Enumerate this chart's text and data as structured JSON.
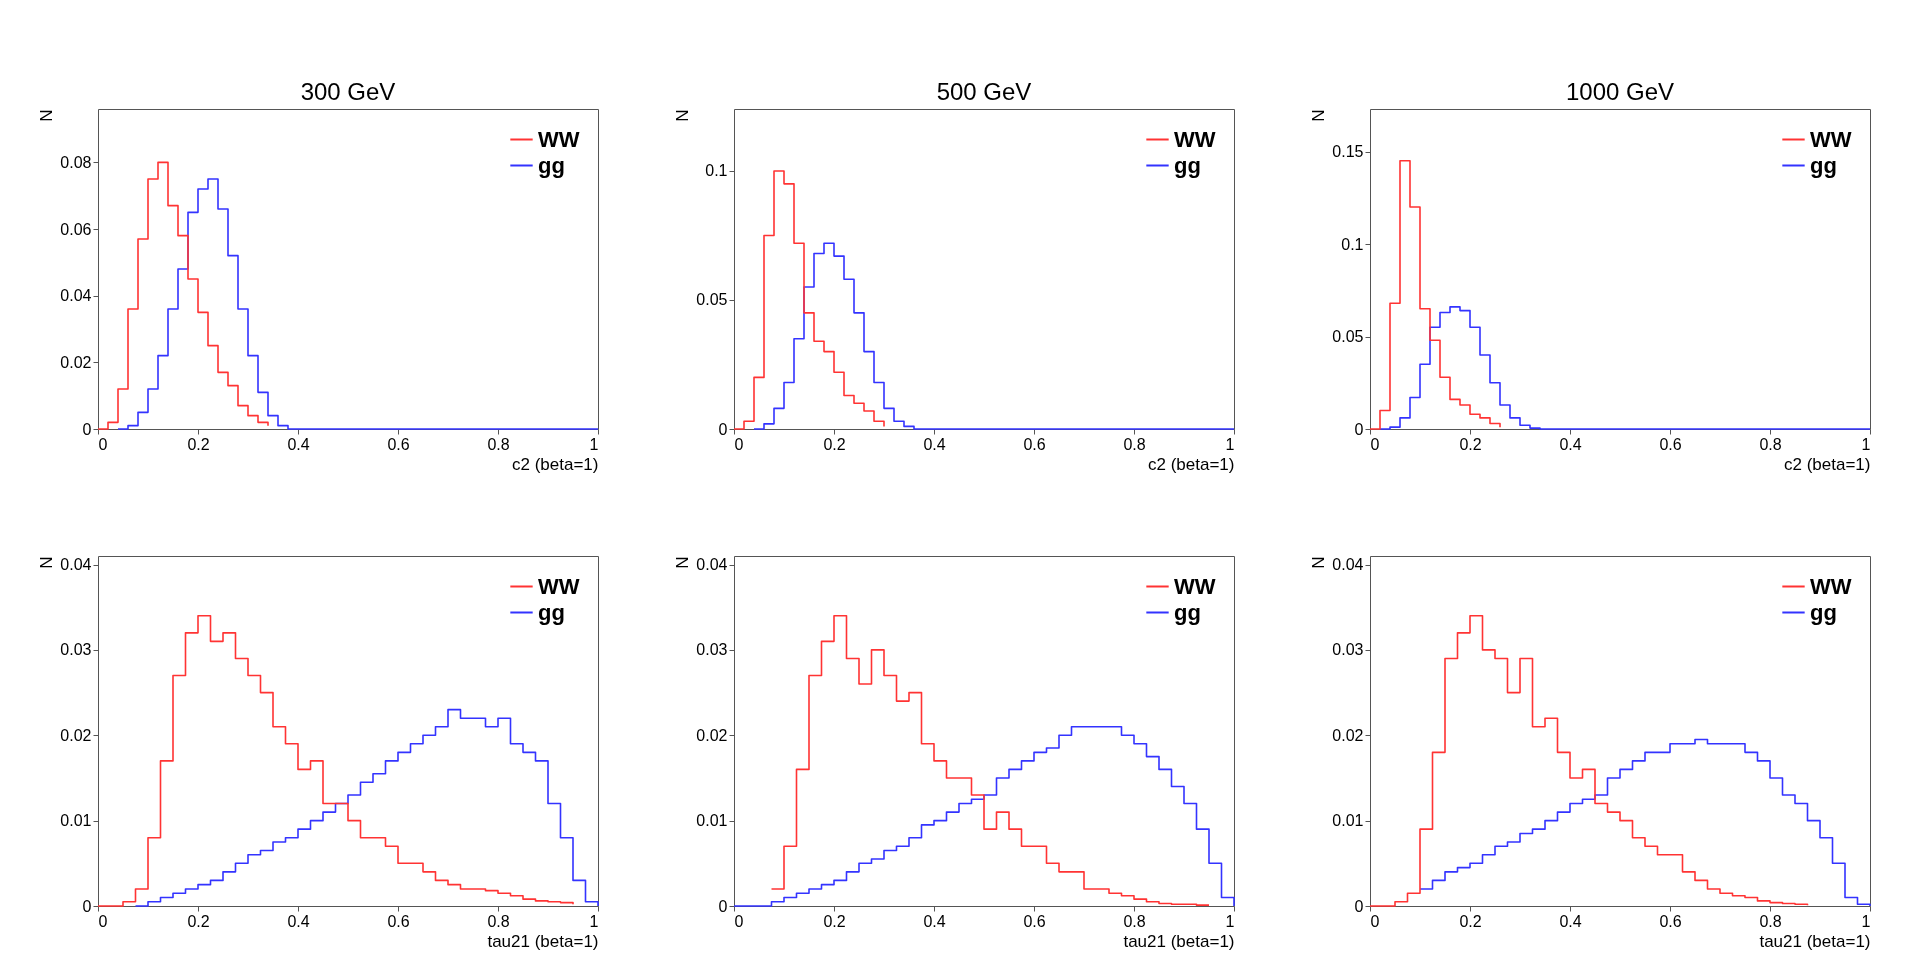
{
  "chart_data": [
    {
      "type": "step",
      "title": "300 GeV",
      "xlabel": "c2 (beta=1)",
      "ylabel": "N",
      "xlim": [
        0,
        1
      ],
      "xticks": [
        0,
        0.2,
        0.4,
        0.6,
        0.8,
        1
      ],
      "ylim": [
        0,
        0.096
      ],
      "yticks": [
        0,
        0.02,
        0.04,
        0.06,
        0.08
      ],
      "legend": "top right",
      "grid": false,
      "series": [
        {
          "name": "WW",
          "color": "#ff3333",
          "x": [
            0,
            0.02,
            0.04,
            0.06,
            0.08,
            0.1,
            0.12,
            0.14,
            0.16,
            0.18,
            0.2,
            0.22,
            0.24,
            0.26,
            0.28,
            0.3,
            0.32,
            0.34
          ],
          "values": [
            0,
            0.002,
            0.012,
            0.036,
            0.057,
            0.075,
            0.08,
            0.067,
            0.058,
            0.045,
            0.035,
            0.025,
            0.017,
            0.013,
            0.007,
            0.004,
            0.002,
            0.001
          ]
        },
        {
          "name": "gg",
          "color": "#3333ff",
          "x": [
            0.04,
            0.06,
            0.08,
            0.1,
            0.12,
            0.14,
            0.16,
            0.18,
            0.2,
            0.22,
            0.24,
            0.26,
            0.28,
            0.3,
            0.32,
            0.34,
            0.36,
            0.38,
            0.4,
            1
          ],
          "values": [
            0,
            0.001,
            0.005,
            0.012,
            0.022,
            0.036,
            0.048,
            0.065,
            0.072,
            0.075,
            0.066,
            0.052,
            0.036,
            0.022,
            0.011,
            0.004,
            0.001,
            0,
            0,
            0
          ]
        }
      ]
    },
    {
      "type": "step",
      "title": "500 GeV",
      "xlabel": "c2 (beta=1)",
      "ylabel": "N",
      "xlim": [
        0,
        1
      ],
      "xticks": [
        0,
        0.2,
        0.4,
        0.6,
        0.8,
        1
      ],
      "ylim": [
        0,
        0.124
      ],
      "yticks": [
        0,
        0.05,
        0.1
      ],
      "legend": "top right",
      "grid": false,
      "series": [
        {
          "name": "WW",
          "color": "#ff3333",
          "x": [
            0,
            0.02,
            0.04,
            0.06,
            0.08,
            0.1,
            0.12,
            0.14,
            0.16,
            0.18,
            0.2,
            0.22,
            0.24,
            0.26,
            0.28,
            0.3
          ],
          "values": [
            0,
            0.003,
            0.02,
            0.075,
            0.1,
            0.095,
            0.072,
            0.045,
            0.034,
            0.03,
            0.022,
            0.013,
            0.01,
            0.007,
            0.003,
            0.001
          ]
        },
        {
          "name": "gg",
          "color": "#3333ff",
          "x": [
            0.04,
            0.06,
            0.08,
            0.1,
            0.12,
            0.14,
            0.16,
            0.18,
            0.2,
            0.22,
            0.24,
            0.26,
            0.28,
            0.3,
            0.32,
            0.34,
            0.36,
            0.38,
            0.4,
            1
          ],
          "values": [
            0,
            0.002,
            0.008,
            0.018,
            0.035,
            0.055,
            0.068,
            0.072,
            0.067,
            0.058,
            0.045,
            0.03,
            0.018,
            0.008,
            0.003,
            0.001,
            0,
            0,
            0,
            0
          ]
        }
      ]
    },
    {
      "type": "step",
      "title": "1000 GeV",
      "xlabel": "c2 (beta=1)",
      "ylabel": "N",
      "xlim": [
        0,
        1
      ],
      "xticks": [
        0,
        0.2,
        0.4,
        0.6,
        0.8,
        1
      ],
      "ylim": [
        0,
        0.173
      ],
      "yticks": [
        0,
        0.05,
        0.1,
        0.15
      ],
      "legend": "top right",
      "grid": false,
      "series": [
        {
          "name": "WW",
          "color": "#ff3333",
          "x": [
            0,
            0.02,
            0.04,
            0.06,
            0.08,
            0.1,
            0.12,
            0.14,
            0.16,
            0.18,
            0.2,
            0.22,
            0.24,
            0.26
          ],
          "values": [
            0,
            0.01,
            0.068,
            0.145,
            0.12,
            0.065,
            0.048,
            0.028,
            0.016,
            0.013,
            0.008,
            0.006,
            0.003,
            0.001
          ]
        },
        {
          "name": "gg",
          "color": "#3333ff",
          "x": [
            0.02,
            0.04,
            0.06,
            0.08,
            0.1,
            0.12,
            0.14,
            0.16,
            0.18,
            0.2,
            0.22,
            0.24,
            0.26,
            0.28,
            0.3,
            0.32,
            0.34,
            0.36,
            0.38,
            0.4,
            1
          ],
          "values": [
            0,
            0.001,
            0.006,
            0.017,
            0.035,
            0.055,
            0.063,
            0.066,
            0.064,
            0.055,
            0.04,
            0.025,
            0.013,
            0.006,
            0.002,
            0.0005,
            0,
            0,
            0,
            0,
            0
          ]
        }
      ]
    },
    {
      "type": "step",
      "xlabel": "tau21 (beta=1)",
      "ylabel": "N",
      "xlim": [
        0,
        1
      ],
      "xticks": [
        0,
        0.2,
        0.4,
        0.6,
        0.8,
        1
      ],
      "ylim": [
        0,
        0.041
      ],
      "yticks": [
        0,
        0.01,
        0.02,
        0.03,
        0.04
      ],
      "legend": "top right",
      "grid": false,
      "series": [
        {
          "name": "WW",
          "color": "#ff3333",
          "x": [
            0,
            0.025,
            0.05,
            0.075,
            0.1,
            0.125,
            0.15,
            0.175,
            0.2,
            0.225,
            0.25,
            0.275,
            0.3,
            0.325,
            0.35,
            0.375,
            0.4,
            0.425,
            0.45,
            0.475,
            0.5,
            0.525,
            0.55,
            0.575,
            0.6,
            0.625,
            0.65,
            0.675,
            0.7,
            0.725,
            0.75,
            0.775,
            0.8,
            0.825,
            0.85,
            0.875,
            0.9,
            0.925,
            0.95
          ],
          "values": [
            0,
            0,
            0.0005,
            0.002,
            0.008,
            0.017,
            0.027,
            0.032,
            0.034,
            0.031,
            0.032,
            0.029,
            0.027,
            0.025,
            0.021,
            0.019,
            0.016,
            0.017,
            0.012,
            0.012,
            0.01,
            0.008,
            0.008,
            0.007,
            0.005,
            0.005,
            0.004,
            0.003,
            0.0025,
            0.002,
            0.002,
            0.0018,
            0.0015,
            0.0012,
            0.0008,
            0.0006,
            0.0005,
            0.0004,
            0.0002
          ]
        },
        {
          "name": "gg",
          "color": "#3333ff",
          "x": [
            0.075,
            0.1,
            0.125,
            0.15,
            0.175,
            0.2,
            0.225,
            0.25,
            0.275,
            0.3,
            0.325,
            0.35,
            0.375,
            0.4,
            0.425,
            0.45,
            0.475,
            0.5,
            0.525,
            0.55,
            0.575,
            0.6,
            0.625,
            0.65,
            0.675,
            0.7,
            0.725,
            0.75,
            0.775,
            0.8,
            0.825,
            0.85,
            0.875,
            0.9,
            0.925,
            0.95,
            0.975,
            1
          ],
          "values": [
            0,
            0.0005,
            0.001,
            0.0015,
            0.002,
            0.0025,
            0.003,
            0.004,
            0.005,
            0.006,
            0.0065,
            0.0075,
            0.008,
            0.009,
            0.01,
            0.011,
            0.012,
            0.013,
            0.0145,
            0.0155,
            0.017,
            0.018,
            0.019,
            0.02,
            0.021,
            0.023,
            0.022,
            0.022,
            0.021,
            0.022,
            0.019,
            0.018,
            0.017,
            0.012,
            0.008,
            0.003,
            0.0005,
            0
          ]
        }
      ]
    },
    {
      "type": "step",
      "xlabel": "tau21 (beta=1)",
      "ylabel": "N",
      "xlim": [
        0,
        1
      ],
      "xticks": [
        0,
        0.2,
        0.4,
        0.6,
        0.8,
        1
      ],
      "ylim": [
        0,
        0.041
      ],
      "yticks": [
        0,
        0.01,
        0.02,
        0.03,
        0.04
      ],
      "legend": "top right",
      "grid": false,
      "series": [
        {
          "name": "WW",
          "color": "#ff3333",
          "x": [
            0.075,
            0.1,
            0.125,
            0.15,
            0.175,
            0.2,
            0.225,
            0.25,
            0.275,
            0.3,
            0.325,
            0.35,
            0.375,
            0.4,
            0.425,
            0.45,
            0.475,
            0.5,
            0.525,
            0.55,
            0.575,
            0.6,
            0.625,
            0.65,
            0.675,
            0.7,
            0.725,
            0.75,
            0.775,
            0.8,
            0.825,
            0.85,
            0.875,
            0.9,
            0.925,
            0.95
          ],
          "values": [
            0.002,
            0.007,
            0.016,
            0.027,
            0.031,
            0.034,
            0.029,
            0.026,
            0.03,
            0.027,
            0.024,
            0.025,
            0.019,
            0.017,
            0.015,
            0.015,
            0.013,
            0.009,
            0.011,
            0.009,
            0.007,
            0.007,
            0.005,
            0.004,
            0.004,
            0.002,
            0.002,
            0.0015,
            0.0012,
            0.0008,
            0.0005,
            0.0003,
            0.0002,
            0.0002,
            0.0001,
            0.0001
          ]
        },
        {
          "name": "gg",
          "color": "#3333ff",
          "x": [
            0,
            0.025,
            0.05,
            0.075,
            0.1,
            0.125,
            0.15,
            0.175,
            0.2,
            0.225,
            0.25,
            0.275,
            0.3,
            0.325,
            0.35,
            0.375,
            0.4,
            0.425,
            0.45,
            0.475,
            0.5,
            0.525,
            0.55,
            0.575,
            0.6,
            0.625,
            0.65,
            0.675,
            0.7,
            0.725,
            0.75,
            0.775,
            0.8,
            0.825,
            0.85,
            0.875,
            0.9,
            0.925,
            0.95,
            0.975,
            1
          ],
          "values": [
            0,
            0,
            0,
            0.0005,
            0.001,
            0.0015,
            0.002,
            0.0025,
            0.003,
            0.004,
            0.005,
            0.0055,
            0.0065,
            0.007,
            0.008,
            0.0095,
            0.01,
            0.011,
            0.012,
            0.0125,
            0.013,
            0.015,
            0.016,
            0.017,
            0.018,
            0.0185,
            0.02,
            0.021,
            0.021,
            0.021,
            0.021,
            0.02,
            0.019,
            0.0175,
            0.016,
            0.014,
            0.012,
            0.009,
            0.005,
            0.001,
            0
          ]
        }
      ]
    },
    {
      "type": "step",
      "xlabel": "tau21 (beta=1)",
      "ylabel": "N",
      "xlim": [
        0,
        1
      ],
      "xticks": [
        0,
        0.2,
        0.4,
        0.6,
        0.8,
        1
      ],
      "ylim": [
        0,
        0.041
      ],
      "yticks": [
        0,
        0.01,
        0.02,
        0.03,
        0.04
      ],
      "legend": "top right",
      "grid": false,
      "series": [
        {
          "name": "WW",
          "color": "#ff3333",
          "x": [
            0,
            0.025,
            0.05,
            0.075,
            0.1,
            0.125,
            0.15,
            0.175,
            0.2,
            0.225,
            0.25,
            0.275,
            0.3,
            0.325,
            0.35,
            0.375,
            0.4,
            0.425,
            0.45,
            0.475,
            0.5,
            0.525,
            0.55,
            0.575,
            0.6,
            0.625,
            0.65,
            0.675,
            0.7,
            0.725,
            0.75,
            0.775,
            0.8,
            0.825,
            0.85,
            0.875
          ],
          "values": [
            0,
            0,
            0.0005,
            0.0015,
            0.009,
            0.018,
            0.029,
            0.032,
            0.034,
            0.03,
            0.029,
            0.025,
            0.029,
            0.021,
            0.022,
            0.018,
            0.015,
            0.016,
            0.012,
            0.011,
            0.01,
            0.008,
            0.007,
            0.006,
            0.006,
            0.004,
            0.003,
            0.002,
            0.0015,
            0.0012,
            0.001,
            0.0006,
            0.0004,
            0.0003,
            0.0002,
            0.0001
          ]
        },
        {
          "name": "gg",
          "color": "#3333ff",
          "x": [
            0.1,
            0.125,
            0.15,
            0.175,
            0.2,
            0.225,
            0.25,
            0.275,
            0.3,
            0.325,
            0.35,
            0.375,
            0.4,
            0.425,
            0.45,
            0.475,
            0.5,
            0.525,
            0.55,
            0.575,
            0.6,
            0.625,
            0.65,
            0.675,
            0.7,
            0.725,
            0.75,
            0.775,
            0.8,
            0.825,
            0.85,
            0.875,
            0.9,
            0.925,
            0.95,
            0.975,
            1
          ],
          "values": [
            0.002,
            0.003,
            0.004,
            0.0045,
            0.005,
            0.006,
            0.007,
            0.0075,
            0.0085,
            0.009,
            0.01,
            0.011,
            0.012,
            0.0125,
            0.013,
            0.015,
            0.016,
            0.017,
            0.018,
            0.018,
            0.019,
            0.019,
            0.0195,
            0.019,
            0.019,
            0.019,
            0.018,
            0.017,
            0.015,
            0.013,
            0.012,
            0.01,
            0.008,
            0.005,
            0.001,
            0.0002,
            0
          ]
        }
      ]
    }
  ]
}
